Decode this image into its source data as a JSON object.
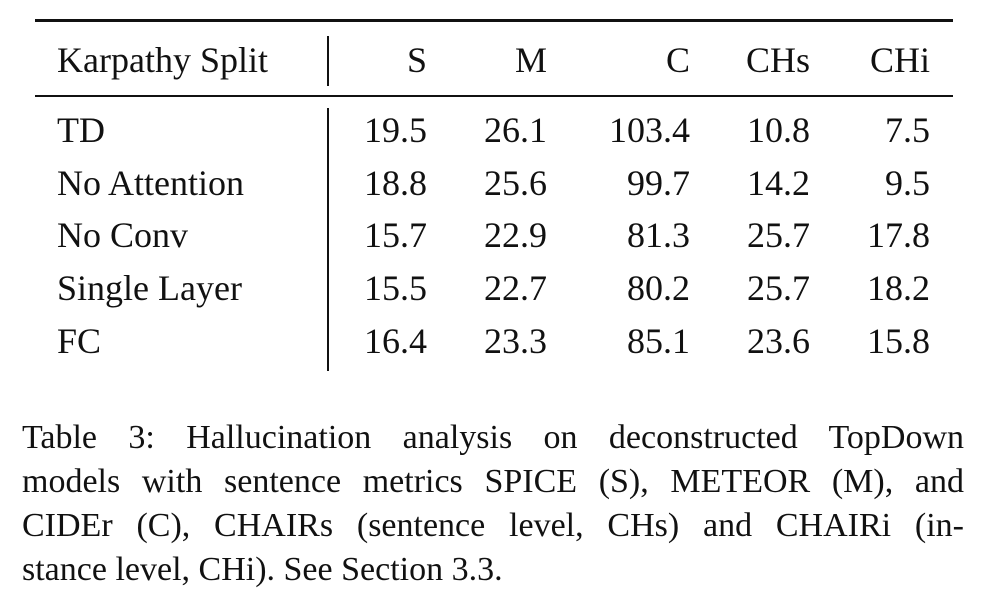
{
  "table": {
    "header": [
      "Karpathy Split",
      "S",
      "M",
      "C",
      "CHs",
      "CHi"
    ],
    "rows": [
      [
        "TD",
        19.5,
        26.1,
        103.4,
        10.8,
        7.5
      ],
      [
        "No Attention",
        18.8,
        25.6,
        99.7,
        14.2,
        9.5
      ],
      [
        "No Conv",
        15.7,
        22.9,
        81.3,
        25.7,
        17.8
      ],
      [
        "Single Layer",
        15.5,
        22.7,
        80.2,
        25.7,
        18.2
      ],
      [
        "FC",
        16.4,
        23.3,
        85.1,
        23.6,
        15.8
      ]
    ]
  },
  "caption": {
    "lines": [
      "Table 3: Hallucination analysis on deconstructed TopDown",
      "models with sentence metrics SPICE (S), METEOR (M), and",
      "CIDEr (C), CHAIRs (sentence level, CHs) and CHAIRi (in-",
      "stance level, CHi). See Section 3.3."
    ]
  }
}
